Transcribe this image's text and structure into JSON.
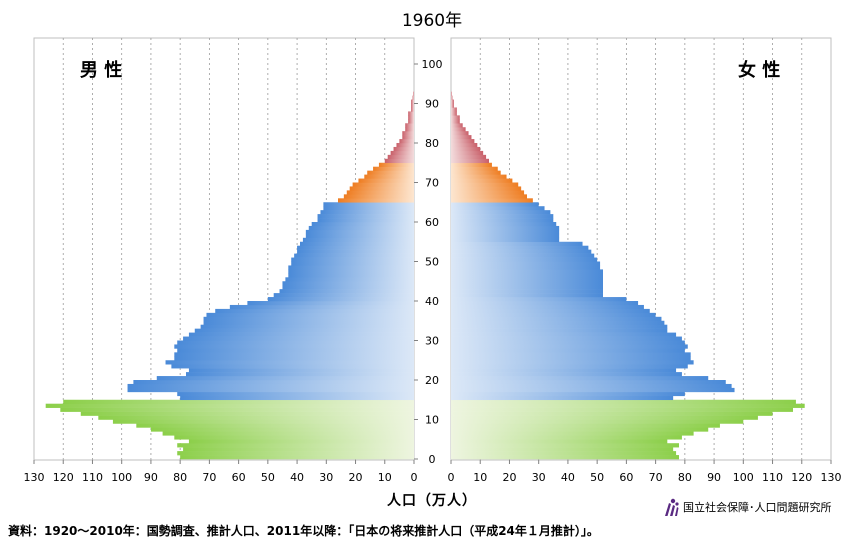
{
  "title": "1960年",
  "male_label": "男 性",
  "female_label": "女 性",
  "xlabel": "人口（万人）",
  "source": "資料：1920～2010年：国勢調査、推計人口、2011年以降：「日本の将来推計人口（平成24年１月推計）」。",
  "org_name": "国立社会保障･人口問題研究所",
  "colors": {
    "young": "#8ccf4a",
    "young_light": "#eef5e0",
    "working": "#4a8ad8",
    "working_light": "#dce8f7",
    "old": "#ee7d22",
    "old_light": "#fde6d0",
    "oldest": "#c9606a",
    "oldest_light": "#f3dcdd"
  },
  "chart_data": {
    "type": "bar",
    "orientation": "horizontal-pyramid",
    "y_label": "age",
    "x_label": "人口（万人）",
    "x_ticks_male": [
      "130",
      "120",
      "110",
      "100",
      "90",
      "80",
      "70",
      "60",
      "50",
      "40",
      "30",
      "20",
      "10",
      "0"
    ],
    "x_ticks_female": [
      "0",
      "10",
      "20",
      "30",
      "40",
      "50",
      "60",
      "70",
      "80",
      "90",
      "100",
      "110",
      "120",
      "130"
    ],
    "y_ticks": [
      "0",
      "10",
      "20",
      "30",
      "40",
      "50",
      "60",
      "70",
      "80",
      "90",
      "100"
    ],
    "xlim": [
      0,
      130
    ],
    "ylim": [
      0,
      105
    ],
    "age_groups": [
      {
        "name": "0-14",
        "range": [
          0,
          14
        ]
      },
      {
        "name": "15-64",
        "range": [
          15,
          64
        ]
      },
      {
        "name": "65-74",
        "range": [
          65,
          74
        ]
      },
      {
        "name": "75+",
        "range": [
          75,
          105
        ]
      }
    ],
    "ages": [
      0,
      1,
      2,
      3,
      4,
      5,
      6,
      7,
      8,
      9,
      10,
      11,
      12,
      13,
      14,
      15,
      16,
      17,
      18,
      19,
      20,
      21,
      22,
      23,
      24,
      25,
      26,
      27,
      28,
      29,
      30,
      31,
      32,
      33,
      34,
      35,
      36,
      37,
      38,
      39,
      40,
      41,
      42,
      43,
      44,
      45,
      46,
      47,
      48,
      49,
      50,
      51,
      52,
      53,
      54,
      55,
      56,
      57,
      58,
      59,
      60,
      61,
      62,
      63,
      64,
      65,
      66,
      67,
      68,
      69,
      70,
      71,
      72,
      73,
      74,
      75,
      76,
      77,
      78,
      79,
      80,
      81,
      82,
      83,
      84,
      85,
      86,
      87,
      88,
      89,
      90,
      91,
      92
    ],
    "series": [
      {
        "name": "男 性",
        "values": [
          80,
          81,
          79,
          81,
          77,
          82,
          86,
          90,
          95,
          103,
          108,
          114,
          121,
          126,
          120,
          80,
          81,
          98,
          98,
          96,
          88,
          78,
          77,
          83,
          85,
          82,
          82,
          81,
          82,
          81,
          79,
          77,
          75,
          73,
          72,
          72,
          71,
          68,
          63,
          57,
          50,
          48,
          46,
          45,
          45,
          44,
          43,
          43,
          43,
          42,
          42,
          41,
          40,
          40,
          39,
          38,
          37,
          37,
          36,
          35,
          33,
          33,
          32,
          31,
          31,
          26,
          24,
          23,
          22,
          21,
          19,
          17,
          16,
          14,
          12,
          10,
          9,
          8,
          7,
          6,
          5,
          4,
          4,
          3,
          3,
          2,
          2,
          2,
          1,
          1,
          1,
          0.5,
          0.3
        ]
      },
      {
        "name": "女 性",
        "values": [
          78,
          77,
          76,
          78,
          74,
          79,
          83,
          88,
          92,
          100,
          105,
          110,
          117,
          121,
          118,
          76,
          80,
          97,
          96,
          94,
          88,
          79,
          77,
          81,
          83,
          82,
          82,
          80,
          81,
          80,
          79,
          77,
          74,
          74,
          73,
          72,
          70,
          68,
          66,
          64,
          60,
          52,
          52,
          52,
          52,
          52,
          52,
          52,
          51,
          51,
          50,
          49,
          48,
          47,
          45,
          37,
          37,
          37,
          37,
          36,
          35,
          35,
          34,
          32,
          30,
          28,
          26,
          25,
          24,
          23,
          21,
          19,
          17,
          16,
          14,
          13,
          12,
          11,
          10,
          9,
          8,
          7,
          6,
          5,
          4,
          3,
          3,
          2,
          2,
          1,
          1,
          0.5,
          0.3
        ]
      }
    ]
  }
}
